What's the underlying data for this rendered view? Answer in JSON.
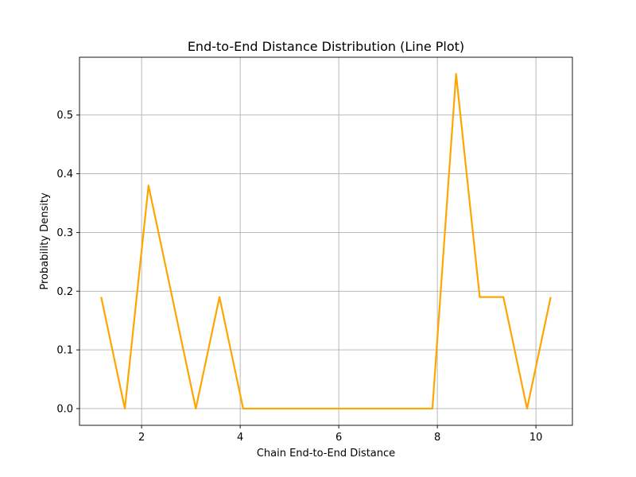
{
  "chart_data": {
    "type": "line",
    "title": "End-to-End Distance Distribution (Line Plot)",
    "xlabel": "Chain End-to-End Distance",
    "ylabel": "Probability Density",
    "xlim": [
      0.74,
      10.74
    ],
    "ylim": [
      -0.0285,
      0.5985
    ],
    "xticks": [
      2,
      4,
      6,
      8,
      10
    ],
    "xtick_labels": [
      "2",
      "4",
      "6",
      "8",
      "10"
    ],
    "yticks": [
      0.0,
      0.1,
      0.2,
      0.3,
      0.4,
      0.5
    ],
    "ytick_labels": [
      "0.0",
      "0.1",
      "0.2",
      "0.3",
      "0.4",
      "0.5"
    ],
    "grid": true,
    "series": [
      {
        "color": "#ffa500",
        "x": [
          1.18,
          1.66,
          2.14,
          2.62,
          3.1,
          3.58,
          4.06,
          4.54,
          5.02,
          5.5,
          5.98,
          6.46,
          6.94,
          7.42,
          7.9,
          8.38,
          8.86,
          9.34,
          9.82,
          10.3
        ],
        "y": [
          0.19,
          0.0,
          0.38,
          0.19,
          0.0,
          0.19,
          0.0,
          0.0,
          0.0,
          0.0,
          0.0,
          0.0,
          0.0,
          0.0,
          0.0,
          0.57,
          0.19,
          0.19,
          0.0,
          0.19
        ]
      }
    ]
  }
}
